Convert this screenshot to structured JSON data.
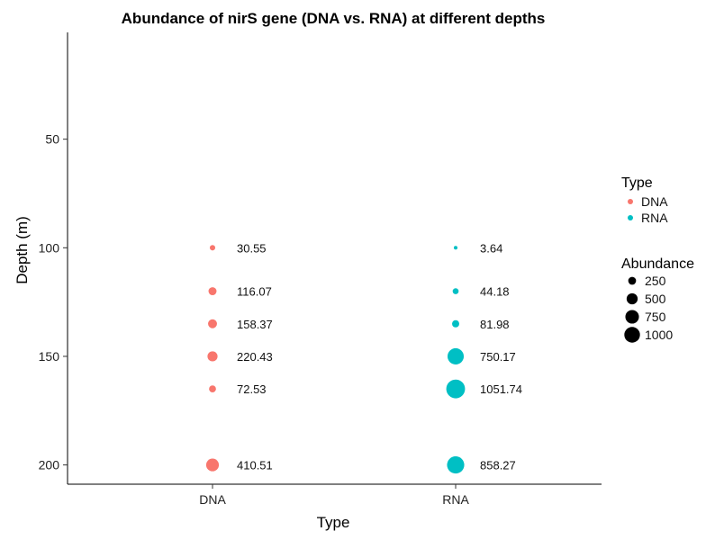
{
  "chart_data": {
    "type": "scatter",
    "title": "Abundance of nirS gene (DNA vs. RNA) at different depths",
    "xlabel": "Type",
    "ylabel": "Depth (m)",
    "categories": [
      "DNA",
      "RNA"
    ],
    "y_ticks": [
      "50",
      "100",
      "150",
      "200"
    ],
    "y_tick_values": [
      50,
      100,
      150,
      200
    ],
    "ylim": [
      210,
      0
    ],
    "y_reversed": true,
    "grid": false,
    "legend_position": "right",
    "series": [
      {
        "name": "DNA",
        "color": "#F8766D",
        "points": [
          {
            "x": "DNA",
            "depth": 100,
            "abundance": 30.55,
            "label": "30.55"
          },
          {
            "x": "DNA",
            "depth": 120,
            "abundance": 116.07,
            "label": "116.07"
          },
          {
            "x": "DNA",
            "depth": 135,
            "abundance": 158.37,
            "label": "158.37"
          },
          {
            "x": "DNA",
            "depth": 150,
            "abundance": 220.43,
            "label": "220.43"
          },
          {
            "x": "DNA",
            "depth": 165,
            "abundance": 72.53,
            "label": "72.53"
          },
          {
            "x": "DNA",
            "depth": 200,
            "abundance": 410.51,
            "label": "410.51"
          }
        ]
      },
      {
        "name": "RNA",
        "color": "#00BFC4",
        "points": [
          {
            "x": "RNA",
            "depth": 100,
            "abundance": 3.64,
            "label": "3.64"
          },
          {
            "x": "RNA",
            "depth": 120,
            "abundance": 44.18,
            "label": "44.18"
          },
          {
            "x": "RNA",
            "depth": 135,
            "abundance": 81.98,
            "label": "81.98"
          },
          {
            "x": "RNA",
            "depth": 150,
            "abundance": 750.17,
            "label": "750.17"
          },
          {
            "x": "RNA",
            "depth": 165,
            "abundance": 1051.74,
            "label": "1051.74"
          },
          {
            "x": "RNA",
            "depth": 200,
            "abundance": 858.27,
            "label": "858.27"
          }
        ]
      }
    ],
    "legend": {
      "color_title": "Type",
      "color_items": [
        {
          "label": "DNA",
          "color": "#F8766D"
        },
        {
          "label": "RNA",
          "color": "#00BFC4"
        }
      ],
      "size_title": "Abundance",
      "size_items": [
        {
          "label": "250",
          "value": 250
        },
        {
          "label": "500",
          "value": 500
        },
        {
          "label": "750",
          "value": 750
        },
        {
          "label": "1000",
          "value": 1000
        }
      ]
    }
  }
}
